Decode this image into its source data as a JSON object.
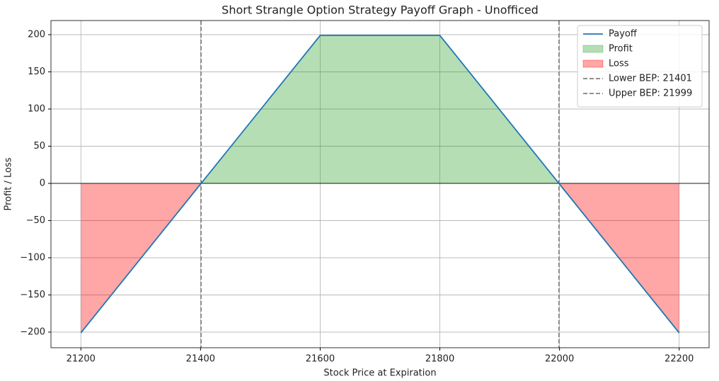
{
  "chart_data": {
    "type": "line",
    "title": "Short Strangle Option Strategy Payoff Graph - Unofficed",
    "x_label": "Stock Price at Expiration",
    "y_label": "Profit / Loss",
    "x": [
      21200,
      21400,
      21600,
      21800,
      22000,
      22200
    ],
    "series": [
      {
        "name": "Payoff",
        "color": "#1f77b4",
        "values": [
          -201,
          -1,
          199,
          199,
          -1,
          -201
        ]
      }
    ],
    "fills": [
      {
        "name": "Profit",
        "color": "#2ca02c",
        "side": "above"
      },
      {
        "name": "Loss",
        "color": "#ff0000",
        "side": "below"
      }
    ],
    "reference_lines": [
      {
        "name": "Lower BEP: 21401",
        "value": 21401,
        "color": "#808080"
      },
      {
        "name": "Upper BEP: 21999",
        "value": 21999,
        "color": "#808080"
      }
    ],
    "xlim": [
      21150,
      22250
    ],
    "ylim": [
      -221,
      219
    ],
    "xticks": [
      21200,
      21400,
      21600,
      21800,
      22000,
      22200
    ],
    "yticks": [
      {
        "value": -200,
        "label": "−200"
      },
      {
        "value": -150,
        "label": "−150"
      },
      {
        "value": -100,
        "label": "−100"
      },
      {
        "value": -50,
        "label": "−50"
      },
      0,
      50,
      100,
      150,
      200
    ],
    "grid": true,
    "legend": "upper right"
  }
}
